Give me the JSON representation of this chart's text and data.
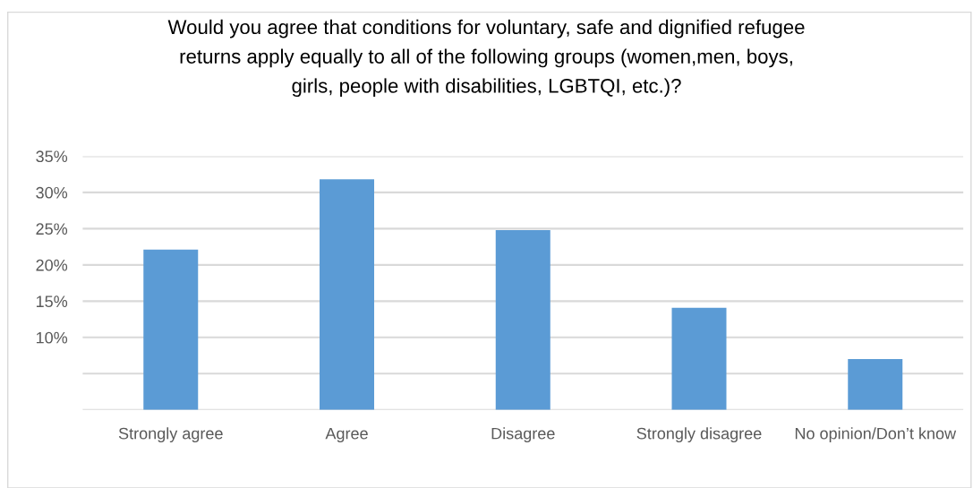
{
  "chart_data": {
    "type": "bar",
    "title": "Would you agree that conditions for voluntary, safe and dignified refugee\nreturns apply equally to all of the following groups (women,men, boys,\ngirls, people with disabilities, LGBTQI, etc.)?",
    "categories": [
      "Strongly agree",
      "Agree",
      "Disagree",
      "Strongly disagree",
      "No opinion/Don’t know"
    ],
    "values": [
      22.1,
      31.8,
      24.8,
      14.1,
      7.0
    ],
    "color": "#5b9bd5",
    "ylim": [
      0,
      35
    ],
    "yticks": [
      {
        "value": 0,
        "label": null
      },
      {
        "value": 5,
        "label": null
      },
      {
        "value": 10,
        "label": "10%"
      },
      {
        "value": 15,
        "label": "15%"
      },
      {
        "value": 20,
        "label": "20%"
      },
      {
        "value": 25,
        "label": "25%"
      },
      {
        "value": 30,
        "label": "30%"
      },
      {
        "value": 35,
        "label": "35%"
      }
    ],
    "grid": "y",
    "legend": false
  }
}
